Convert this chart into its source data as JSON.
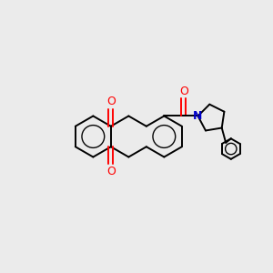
{
  "background_color": "#ebebeb",
  "bond_color": "#000000",
  "oxygen_color": "#ff0000",
  "nitrogen_color": "#0000cc",
  "line_width": 1.4,
  "figsize": [
    3.0,
    3.0
  ],
  "dpi": 100,
  "xlim": [
    -4.0,
    4.5
  ],
  "ylim": [
    -3.0,
    3.0
  ]
}
